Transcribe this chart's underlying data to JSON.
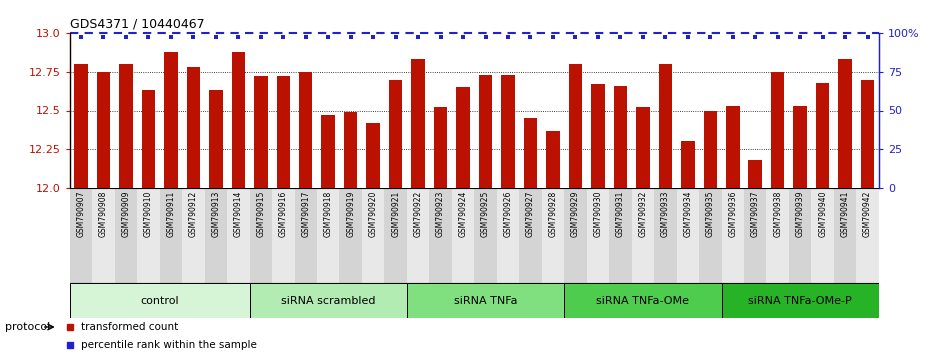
{
  "title": "GDS4371 / 10440467",
  "samples": [
    "GSM790907",
    "GSM790908",
    "GSM790909",
    "GSM790910",
    "GSM790911",
    "GSM790912",
    "GSM790913",
    "GSM790914",
    "GSM790915",
    "GSM790916",
    "GSM790917",
    "GSM790918",
    "GSM790919",
    "GSM790920",
    "GSM790921",
    "GSM790922",
    "GSM790923",
    "GSM790924",
    "GSM790925",
    "GSM790926",
    "GSM790927",
    "GSM790928",
    "GSM790929",
    "GSM790930",
    "GSM790931",
    "GSM790932",
    "GSM790933",
    "GSM790934",
    "GSM790935",
    "GSM790936",
    "GSM790937",
    "GSM790938",
    "GSM790939",
    "GSM790940",
    "GSM790941",
    "GSM790942"
  ],
  "bar_values": [
    12.8,
    12.75,
    12.8,
    12.63,
    12.88,
    12.78,
    12.63,
    12.88,
    12.72,
    12.72,
    12.75,
    12.47,
    12.49,
    12.42,
    12.7,
    12.83,
    12.52,
    12.65,
    12.73,
    12.73,
    12.45,
    12.37,
    12.8,
    12.67,
    12.66,
    12.52,
    12.8,
    12.3,
    12.5,
    12.53,
    12.18,
    12.75,
    12.53,
    12.68,
    12.83,
    12.7
  ],
  "group_labels": [
    "control",
    "siRNA scrambled",
    "siRNA TNFa",
    "siRNA TNFa-OMe",
    "siRNA TNFa-OMe-P"
  ],
  "group_ranges": [
    [
      0,
      8
    ],
    [
      8,
      15
    ],
    [
      15,
      22
    ],
    [
      22,
      29
    ],
    [
      29,
      36
    ]
  ],
  "group_colors": [
    "#d6f5d6",
    "#b3ecb3",
    "#80e080",
    "#4dcc4d",
    "#26b326"
  ],
  "bar_color": "#bb1100",
  "percentile_color": "#2222cc",
  "ylim_left": [
    12.0,
    13.0
  ],
  "ylim_right": [
    0,
    100
  ],
  "yticks_left": [
    12.0,
    12.25,
    12.5,
    12.75,
    13.0
  ],
  "yticks_right": [
    0,
    25,
    50,
    75,
    100
  ],
  "background_color": "#ffffff",
  "legend_items": [
    {
      "label": "transformed count",
      "color": "#bb1100"
    },
    {
      "label": "percentile rank within the sample",
      "color": "#2222cc"
    }
  ],
  "tick_bg_even": "#d4d4d4",
  "tick_bg_odd": "#e8e8e8"
}
